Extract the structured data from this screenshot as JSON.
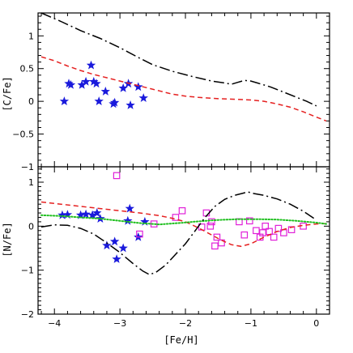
{
  "chart_data": [
    {
      "type": "scatter",
      "panel": "top",
      "ylabel": "[C/Fe]",
      "xlim": [
        -4.25,
        0.2
      ],
      "ylim": [
        -1.0,
        1.35
      ],
      "yticks_major": [
        -1,
        -0.5,
        0,
        0.5,
        1
      ],
      "ytick_labels": [
        "−1",
        "−0.5",
        "0",
        "0.5",
        "1"
      ],
      "series": [
        {
          "kind": "points",
          "marker": "star",
          "color": "#1a1adc",
          "points": [
            [
              -3.85,
              0.0
            ],
            [
              -3.78,
              0.27
            ],
            [
              -3.75,
              0.25
            ],
            [
              -3.58,
              0.25
            ],
            [
              -3.52,
              0.3
            ],
            [
              -3.44,
              0.55
            ],
            [
              -3.4,
              0.3
            ],
            [
              -3.36,
              0.27
            ],
            [
              -3.32,
              0.0
            ],
            [
              -3.22,
              0.15
            ],
            [
              -3.1,
              -0.04
            ],
            [
              -3.08,
              -0.02
            ],
            [
              -2.95,
              0.2
            ],
            [
              -2.87,
              0.27
            ],
            [
              -2.84,
              -0.06
            ],
            [
              -2.72,
              0.22
            ],
            [
              -2.64,
              0.05
            ]
          ]
        },
        {
          "kind": "line",
          "dash": "long-dash-dot",
          "color": "#000000",
          "points": [
            [
              -4.2,
              1.35
            ],
            [
              -3.9,
              1.22
            ],
            [
              -3.6,
              1.08
            ],
            [
              -3.3,
              0.96
            ],
            [
              -3.0,
              0.82
            ],
            [
              -2.7,
              0.66
            ],
            [
              -2.5,
              0.56
            ],
            [
              -2.2,
              0.46
            ],
            [
              -1.9,
              0.38
            ],
            [
              -1.6,
              0.31
            ],
            [
              -1.4,
              0.28
            ],
            [
              -1.3,
              0.26
            ],
            [
              -1.2,
              0.29
            ],
            [
              -1.1,
              0.32
            ],
            [
              -1.0,
              0.31
            ],
            [
              -0.9,
              0.28
            ],
            [
              -0.7,
              0.22
            ],
            [
              -0.5,
              0.14
            ],
            [
              -0.3,
              0.06
            ],
            [
              -0.15,
              0.0
            ],
            [
              0.0,
              -0.07
            ]
          ]
        },
        {
          "kind": "line",
          "dash": "dashed",
          "color": "#e52020",
          "points": [
            [
              -4.2,
              0.68
            ],
            [
              -4.0,
              0.62
            ],
            [
              -3.8,
              0.54
            ],
            [
              -3.6,
              0.47
            ],
            [
              -3.4,
              0.41
            ],
            [
              -3.2,
              0.36
            ],
            [
              -3.0,
              0.31
            ],
            [
              -2.8,
              0.26
            ],
            [
              -2.6,
              0.21
            ],
            [
              -2.4,
              0.16
            ],
            [
              -2.2,
              0.11
            ],
            [
              -2.0,
              0.08
            ],
            [
              -1.8,
              0.06
            ],
            [
              -1.5,
              0.04
            ],
            [
              -1.2,
              0.03
            ],
            [
              -1.0,
              0.02
            ],
            [
              -0.8,
              0.0
            ],
            [
              -0.6,
              -0.04
            ],
            [
              -0.4,
              -0.09
            ],
            [
              -0.2,
              -0.16
            ],
            [
              0.0,
              -0.24
            ],
            [
              0.15,
              -0.3
            ]
          ]
        }
      ]
    },
    {
      "type": "scatter",
      "panel": "bottom",
      "xlabel": "[Fe/H]",
      "ylabel": "[N/Fe]",
      "xlim": [
        -4.25,
        0.2
      ],
      "ylim": [
        -2.0,
        1.35
      ],
      "xticks_major": [
        -4,
        -3,
        -2,
        -1,
        0
      ],
      "xtick_labels": [
        "−4",
        "−3",
        "−2",
        "−1",
        "0"
      ],
      "yticks_major": [
        -2,
        -1,
        0,
        1
      ],
      "ytick_labels": [
        "−2",
        "−1",
        "0",
        "1"
      ],
      "series": [
        {
          "kind": "points",
          "marker": "star",
          "color": "#1a1adc",
          "points": [
            [
              -3.88,
              0.25
            ],
            [
              -3.8,
              0.26
            ],
            [
              -3.6,
              0.25
            ],
            [
              -3.52,
              0.27
            ],
            [
              -3.42,
              0.25
            ],
            [
              -3.35,
              0.3
            ],
            [
              -3.3,
              0.17
            ],
            [
              -3.2,
              -0.44
            ],
            [
              -3.08,
              -0.35
            ],
            [
              -3.05,
              -0.75
            ],
            [
              -2.95,
              -0.5
            ],
            [
              -2.88,
              0.12
            ],
            [
              -2.85,
              0.4
            ],
            [
              -2.72,
              -0.25
            ],
            [
              -2.62,
              0.1
            ]
          ]
        },
        {
          "kind": "points",
          "marker": "open-square",
          "color": "#e020d8",
          "points": [
            [
              -3.05,
              1.15
            ],
            [
              -2.7,
              -0.18
            ],
            [
              -2.48,
              0.05
            ],
            [
              -2.15,
              0.2
            ],
            [
              -2.05,
              0.35
            ],
            [
              -1.75,
              -0.02
            ],
            [
              -1.68,
              0.3
            ],
            [
              -1.6,
              0.1
            ],
            [
              -1.55,
              -0.45
            ],
            [
              -1.52,
              -0.25
            ],
            [
              -1.45,
              -0.38
            ],
            [
              -1.62,
              0.0
            ],
            [
              -1.18,
              0.1
            ],
            [
              -1.1,
              -0.2
            ],
            [
              -1.02,
              0.12
            ],
            [
              -0.92,
              -0.1
            ],
            [
              -0.86,
              -0.25
            ],
            [
              -0.82,
              -0.15
            ],
            [
              -0.78,
              0.0
            ],
            [
              -0.72,
              -0.12
            ],
            [
              -0.65,
              -0.25
            ],
            [
              -0.58,
              -0.05
            ],
            [
              -0.5,
              -0.15
            ],
            [
              -0.38,
              -0.08
            ],
            [
              -0.2,
              0.0
            ]
          ]
        },
        {
          "kind": "line",
          "dash": "dashed",
          "color": "#e52020",
          "points": [
            [
              -4.2,
              0.55
            ],
            [
              -3.9,
              0.5
            ],
            [
              -3.6,
              0.45
            ],
            [
              -3.3,
              0.4
            ],
            [
              -3.0,
              0.35
            ],
            [
              -2.7,
              0.3
            ],
            [
              -2.4,
              0.24
            ],
            [
              -2.2,
              0.18
            ],
            [
              -2.0,
              0.1
            ],
            [
              -1.8,
              -0.04
            ],
            [
              -1.6,
              -0.2
            ],
            [
              -1.45,
              -0.32
            ],
            [
              -1.3,
              -0.42
            ],
            [
              -1.15,
              -0.46
            ],
            [
              -1.0,
              -0.4
            ],
            [
              -0.8,
              -0.25
            ],
            [
              -0.6,
              -0.12
            ],
            [
              -0.4,
              -0.03
            ],
            [
              -0.2,
              0.02
            ],
            [
              0.0,
              0.05
            ],
            [
              0.15,
              0.06
            ]
          ]
        },
        {
          "kind": "line",
          "dash": "dotted",
          "color": "#1fbf1f",
          "points": [
            [
              -4.2,
              0.25
            ],
            [
              -3.9,
              0.23
            ],
            [
              -3.6,
              0.2
            ],
            [
              -3.3,
              0.17
            ],
            [
              -3.0,
              0.12
            ],
            [
              -2.7,
              0.07
            ],
            [
              -2.4,
              0.04
            ],
            [
              -2.1,
              0.07
            ],
            [
              -1.8,
              0.11
            ],
            [
              -1.5,
              0.14
            ],
            [
              -1.2,
              0.16
            ],
            [
              -0.9,
              0.16
            ],
            [
              -0.6,
              0.15
            ],
            [
              -0.3,
              0.12
            ],
            [
              0.0,
              0.08
            ],
            [
              0.15,
              0.05
            ]
          ]
        },
        {
          "kind": "line",
          "dash": "long-dash-dot",
          "color": "#000000",
          "points": [
            [
              -4.2,
              -0.02
            ],
            [
              -4.0,
              0.03
            ],
            [
              -3.8,
              0.02
            ],
            [
              -3.6,
              -0.05
            ],
            [
              -3.4,
              -0.18
            ],
            [
              -3.2,
              -0.38
            ],
            [
              -3.0,
              -0.6
            ],
            [
              -2.8,
              -0.85
            ],
            [
              -2.65,
              -1.02
            ],
            [
              -2.55,
              -1.1
            ],
            [
              -2.45,
              -1.05
            ],
            [
              -2.3,
              -0.88
            ],
            [
              -2.15,
              -0.64
            ],
            [
              -2.0,
              -0.4
            ],
            [
              -1.85,
              -0.1
            ],
            [
              -1.7,
              0.2
            ],
            [
              -1.55,
              0.45
            ],
            [
              -1.4,
              0.61
            ],
            [
              -1.25,
              0.7
            ],
            [
              -1.12,
              0.75
            ],
            [
              -1.05,
              0.78
            ],
            [
              -0.95,
              0.74
            ],
            [
              -0.8,
              0.7
            ],
            [
              -0.6,
              0.62
            ],
            [
              -0.4,
              0.5
            ],
            [
              -0.2,
              0.34
            ],
            [
              0.0,
              0.14
            ]
          ]
        }
      ]
    }
  ]
}
